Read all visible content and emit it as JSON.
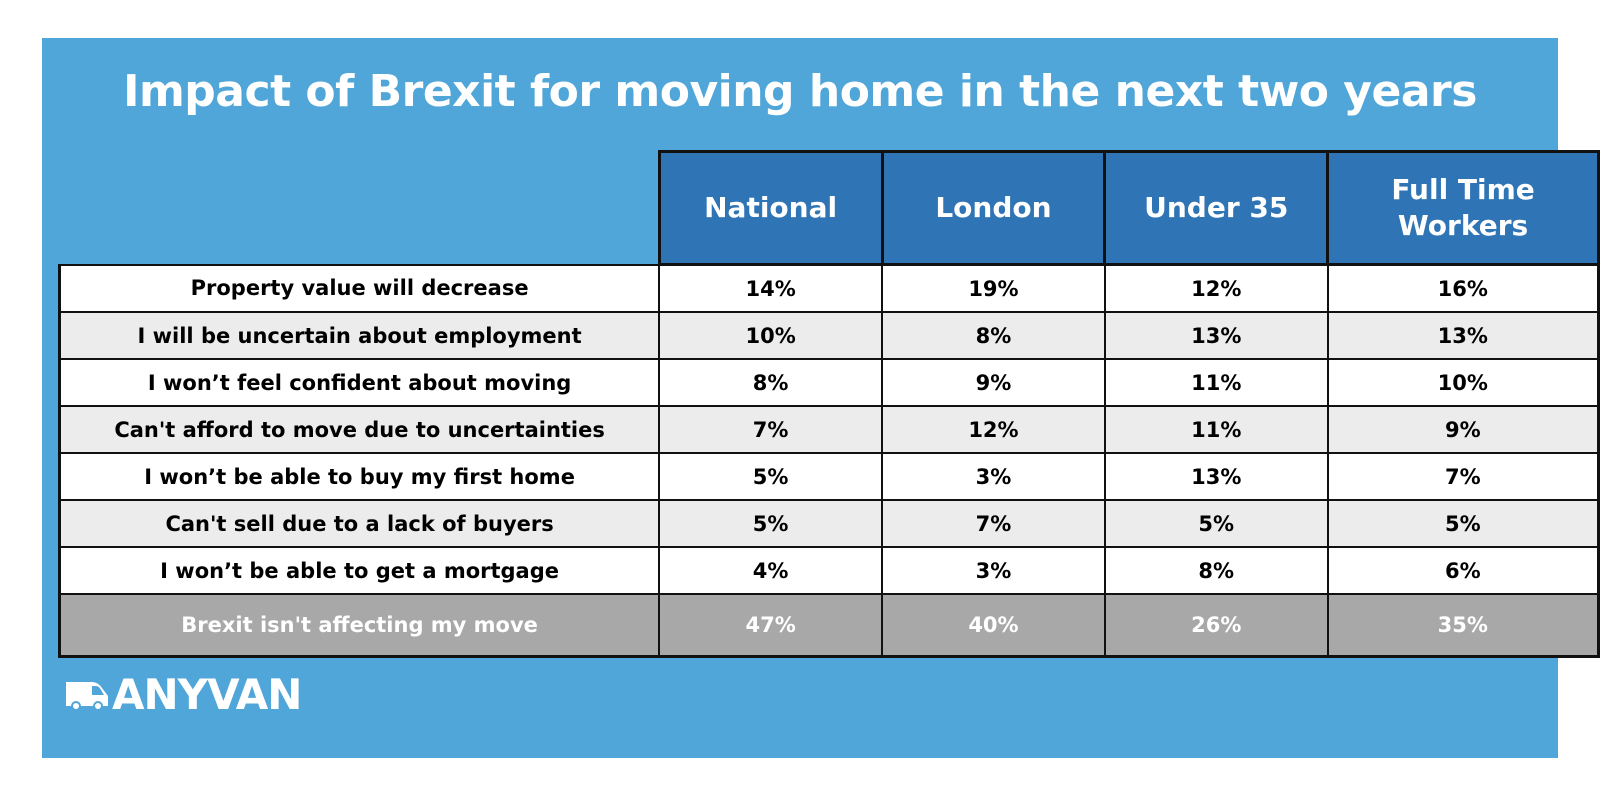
{
  "title": "Impact of Brexit for moving home in the next two years",
  "brand": {
    "name": "ANYVAN",
    "icon": "van-icon"
  },
  "colors": {
    "background": "#50a6d8",
    "header": "#2f74b5",
    "total_row": "#a8a8a8",
    "alt_row": "#ececec"
  },
  "chart_data": {
    "type": "table",
    "title": "Impact of Brexit for moving home in the next two years",
    "columns": [
      "National",
      "London",
      "Under 35",
      "Full Time Workers"
    ],
    "rows": [
      {
        "label": "Property value will decrease",
        "values": [
          "14%",
          "19%",
          "12%",
          "16%"
        ]
      },
      {
        "label": "I will be uncertain about employment",
        "values": [
          "10%",
          "8%",
          "13%",
          "13%"
        ]
      },
      {
        "label": "I won’t feel confident about moving",
        "values": [
          "8%",
          "9%",
          "11%",
          "10%"
        ]
      },
      {
        "label": "Can't afford to move due to uncertainties",
        "values": [
          "7%",
          "12%",
          "11%",
          "9%"
        ]
      },
      {
        "label": "I won’t be able to buy my first home",
        "values": [
          "5%",
          "3%",
          "13%",
          "7%"
        ]
      },
      {
        "label": "Can't sell due to a lack of buyers",
        "values": [
          "5%",
          "7%",
          "5%",
          "5%"
        ]
      },
      {
        "label": "I won’t be able to get a mortgage",
        "values": [
          "4%",
          "3%",
          "8%",
          "6%"
        ]
      }
    ],
    "total_row": {
      "label": "Brexit isn't affecting my move",
      "values": [
        "47%",
        "40%",
        "26%",
        "35%"
      ]
    }
  }
}
